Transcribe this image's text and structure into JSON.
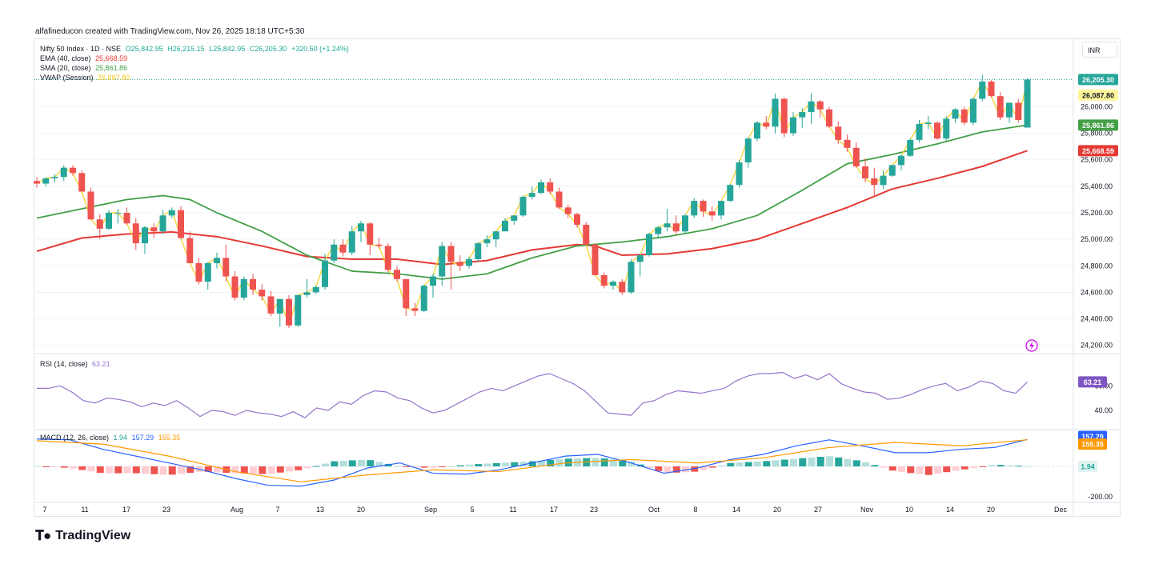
{
  "credit": "alfafineducon created with TradingView.com, Nov 26, 2025 18:18 UTC+5:30",
  "brand": "TradingView",
  "currency_button": "INR",
  "colors": {
    "up": "#26a69a",
    "down": "#ef5350",
    "ema": "#e53935",
    "sma": "#43a047",
    "vwap": "#f5d63a",
    "rsi": "#9575cd",
    "macd": "#2962ff",
    "signal": "#ff9800",
    "hist_up": "#26a69a",
    "hist_up_light": "#b2dfdb",
    "hist_down": "#ef5350",
    "hist_down_light": "#ffcdd2",
    "grid": "#f0f3fa",
    "text": "#131722"
  },
  "legend": {
    "main": {
      "name": "Nifty 50 Index · 1D · NSE",
      "o": "O25,842.95",
      "h": "H26,215.15",
      "l": "L25,842.95",
      "c": "C26,205.30",
      "chg": "+320.50 (+1.24%)"
    },
    "ema": {
      "name": "EMA (40, close)",
      "value": "25,668.59"
    },
    "sma": {
      "name": "SMA (20, close)",
      "value": "25,861.86"
    },
    "vwap": {
      "name": "VWAP (Session)",
      "value": "26,087.80"
    },
    "rsi": {
      "name": "RSI (14, close)",
      "value": "63.21"
    },
    "macd": {
      "name": "MACD (12, 26, close)",
      "hist": "1.94",
      "macd": "157.29",
      "signal": "155.35"
    }
  },
  "chart_data": [
    {
      "type": "candlestick",
      "title": "Nifty 50 Index · 1D · NSE",
      "x_tick_labels": [
        "7",
        "11",
        "17",
        "23",
        "Aug",
        "7",
        "13",
        "20",
        "Sep",
        "5",
        "11",
        "17",
        "23",
        "Oct",
        "8",
        "14",
        "20",
        "27",
        "Nov",
        "10",
        "14",
        "20",
        "Dec"
      ],
      "y_tick_labels": [
        "24,200.00",
        "24,400.00",
        "24,600.00",
        "24,800.00",
        "25,000.00",
        "25,200.00",
        "25,400.00",
        "25,600.00",
        "25,800.00",
        "26,000.00"
      ],
      "ylim": [
        24150,
        26250
      ],
      "price_labels": {
        "close": "26,205.30",
        "vwap": "26,087.80",
        "sma": "25,861.86",
        "ema": "25,668.59"
      },
      "candles": [
        [
          25440,
          25470,
          25390,
          25420
        ],
        [
          25420,
          25470,
          25400,
          25460
        ],
        [
          25460,
          25490,
          25430,
          25470
        ],
        [
          25470,
          25560,
          25440,
          25540
        ],
        [
          25540,
          25560,
          25480,
          25500
        ],
        [
          25500,
          25520,
          25360,
          25360
        ],
        [
          25360,
          25390,
          25150,
          25150
        ],
        [
          25150,
          25190,
          25000,
          25080
        ],
        [
          25080,
          25220,
          25070,
          25200
        ],
        [
          25200,
          25230,
          25120,
          25200
        ],
        [
          25200,
          25240,
          25110,
          25120
        ],
        [
          25120,
          25160,
          24920,
          24970
        ],
        [
          24970,
          25100,
          24890,
          25090
        ],
        [
          25090,
          25120,
          25010,
          25060
        ],
        [
          25060,
          25220,
          25040,
          25180
        ],
        [
          25180,
          25240,
          25160,
          25220
        ],
        [
          25220,
          25250,
          25000,
          25010
        ],
        [
          25010,
          25060,
          24820,
          24820
        ],
        [
          24820,
          24860,
          24660,
          24680
        ],
        [
          24680,
          24830,
          24620,
          24820
        ],
        [
          24820,
          24900,
          24780,
          24860
        ],
        [
          24860,
          24960,
          24680,
          24720
        ],
        [
          24720,
          24760,
          24540,
          24560
        ],
        [
          24560,
          24720,
          24540,
          24700
        ],
        [
          24700,
          24740,
          24580,
          24620
        ],
        [
          24620,
          24660,
          24540,
          24570
        ],
        [
          24570,
          24610,
          24420,
          24440
        ],
        [
          24440,
          24550,
          24340,
          24550
        ],
        [
          24550,
          24580,
          24330,
          24350
        ],
        [
          24350,
          24580,
          24340,
          24580
        ],
        [
          24580,
          24700,
          24560,
          24600
        ],
        [
          24600,
          24650,
          24590,
          24640
        ],
        [
          24640,
          24890,
          24620,
          24840
        ],
        [
          24840,
          25000,
          24820,
          24960
        ],
        [
          24960,
          25000,
          24870,
          24900
        ],
        [
          24900,
          25100,
          24880,
          25060
        ],
        [
          25060,
          25140,
          24980,
          25120
        ],
        [
          25120,
          25130,
          24880,
          24960
        ],
        [
          24960,
          25010,
          24930,
          24950
        ],
        [
          24950,
          24970,
          24750,
          24770
        ],
        [
          24770,
          24800,
          24680,
          24700
        ],
        [
          24700,
          24700,
          24420,
          24480
        ],
        [
          24480,
          24520,
          24420,
          24460
        ],
        [
          24460,
          24660,
          24450,
          24650
        ],
        [
          24650,
          24740,
          24560,
          24720
        ],
        [
          24720,
          24980,
          24650,
          24950
        ],
        [
          24950,
          24980,
          24620,
          24830
        ],
        [
          24830,
          24880,
          24760,
          24800
        ],
        [
          24800,
          24870,
          24780,
          24850
        ],
        [
          24850,
          24980,
          24830,
          24970
        ],
        [
          24970,
          25030,
          24940,
          25000
        ],
        [
          25000,
          25060,
          24940,
          25060
        ],
        [
          25060,
          25160,
          25060,
          25140
        ],
        [
          25140,
          25180,
          25110,
          25180
        ],
        [
          25180,
          25330,
          25170,
          25320
        ],
        [
          25320,
          25400,
          25300,
          25350
        ],
        [
          25350,
          25450,
          25340,
          25430
        ],
        [
          25430,
          25460,
          25340,
          25360
        ],
        [
          25360,
          25390,
          25230,
          25240
        ],
        [
          25240,
          25260,
          25160,
          25190
        ],
        [
          25190,
          25200,
          25090,
          25110
        ],
        [
          25110,
          25130,
          24950,
          24960
        ],
        [
          24960,
          24970,
          24730,
          24730
        ],
        [
          24730,
          24750,
          24630,
          24650
        ],
        [
          24650,
          24690,
          24620,
          24680
        ],
        [
          24680,
          24700,
          24580,
          24600
        ],
        [
          24600,
          24850,
          24590,
          24830
        ],
        [
          24830,
          24890,
          24720,
          24880
        ],
        [
          24880,
          25050,
          24870,
          25040
        ],
        [
          25040,
          25100,
          25010,
          25090
        ],
        [
          25090,
          25230,
          25060,
          25120
        ],
        [
          25120,
          25180,
          25040,
          25060
        ],
        [
          25060,
          25190,
          25040,
          25180
        ],
        [
          25180,
          25310,
          25160,
          25290
        ],
        [
          25290,
          25300,
          25170,
          25210
        ],
        [
          25210,
          25250,
          25140,
          25180
        ],
        [
          25180,
          25290,
          25150,
          25290
        ],
        [
          25290,
          25420,
          25280,
          25410
        ],
        [
          25410,
          25600,
          25390,
          25580
        ],
        [
          25580,
          25770,
          25540,
          25760
        ],
        [
          25760,
          25890,
          25740,
          25880
        ],
        [
          25880,
          25930,
          25830,
          25850
        ],
        [
          25850,
          26100,
          25800,
          26060
        ],
        [
          26060,
          26070,
          25770,
          25800
        ],
        [
          25800,
          25960,
          25780,
          25920
        ],
        [
          25920,
          25990,
          25840,
          25960
        ],
        [
          25960,
          26100,
          25870,
          26040
        ],
        [
          26040,
          26050,
          25920,
          25980
        ],
        [
          25980,
          26000,
          25840,
          25850
        ],
        [
          25850,
          25890,
          25720,
          25750
        ],
        [
          25750,
          25790,
          25660,
          25690
        ],
        [
          25690,
          25730,
          25540,
          25550
        ],
        [
          25550,
          25610,
          25430,
          25460
        ],
        [
          25460,
          25540,
          25320,
          25410
        ],
        [
          25410,
          25520,
          25380,
          25480
        ],
        [
          25480,
          25560,
          25470,
          25560
        ],
        [
          25560,
          25640,
          25520,
          25630
        ],
        [
          25630,
          25760,
          25620,
          25750
        ],
        [
          25750,
          25900,
          25730,
          25870
        ],
        [
          25870,
          25930,
          25830,
          25880
        ],
        [
          25880,
          25890,
          25750,
          25760
        ],
        [
          25760,
          25930,
          25740,
          25910
        ],
        [
          25910,
          25990,
          25880,
          25980
        ],
        [
          25980,
          26000,
          25860,
          25880
        ],
        [
          25880,
          26070,
          25860,
          26060
        ],
        [
          26060,
          26240,
          26040,
          26190
        ],
        [
          26190,
          26200,
          26070,
          26080
        ],
        [
          26080,
          26110,
          25900,
          25920
        ],
        [
          25920,
          26030,
          25880,
          26030
        ],
        [
          26030,
          26060,
          25880,
          25900
        ],
        [
          25842.95,
          26215.15,
          25842.95,
          26205.3
        ]
      ],
      "ema40": [
        [
          0,
          24910
        ],
        [
          5,
          25010
        ],
        [
          10,
          25040
        ],
        [
          15,
          25055
        ],
        [
          20,
          25020
        ],
        [
          25,
          24950
        ],
        [
          30,
          24870
        ],
        [
          35,
          24850
        ],
        [
          40,
          24850
        ],
        [
          45,
          24810
        ],
        [
          50,
          24840
        ],
        [
          55,
          24920
        ],
        [
          60,
          24960
        ],
        [
          62,
          24950
        ],
        [
          65,
          24880
        ],
        [
          70,
          24890
        ],
        [
          75,
          24930
        ],
        [
          80,
          25000
        ],
        [
          85,
          25120
        ],
        [
          90,
          25240
        ],
        [
          95,
          25380
        ],
        [
          100,
          25460
        ],
        [
          105,
          25550
        ],
        [
          110,
          25668.59
        ]
      ],
      "sma20": [
        [
          0,
          25160
        ],
        [
          5,
          25230
        ],
        [
          10,
          25300
        ],
        [
          14,
          25330
        ],
        [
          17,
          25300
        ],
        [
          20,
          25200
        ],
        [
          25,
          25060
        ],
        [
          30,
          24880
        ],
        [
          35,
          24760
        ],
        [
          40,
          24740
        ],
        [
          45,
          24700
        ],
        [
          50,
          24740
        ],
        [
          55,
          24860
        ],
        [
          60,
          24950
        ],
        [
          65,
          24980
        ],
        [
          70,
          25020
        ],
        [
          75,
          25080
        ],
        [
          80,
          25180
        ],
        [
          85,
          25370
        ],
        [
          90,
          25570
        ],
        [
          95,
          25640
        ],
        [
          100,
          25720
        ],
        [
          105,
          25810
        ],
        [
          110,
          25861.86
        ]
      ],
      "vwap_series": "follows close"
    },
    {
      "type": "line",
      "title": "RSI (14, close)",
      "y_tick_labels": [
        "40.00",
        "60.00"
      ],
      "ylim": [
        25,
        85
      ],
      "value_label": "63.21",
      "values": [
        58,
        58,
        60,
        55,
        48,
        46,
        50,
        49,
        47,
        43,
        46,
        44,
        48,
        42,
        35,
        40,
        39,
        36,
        40,
        38,
        37,
        35,
        39,
        34,
        42,
        40,
        47,
        45,
        52,
        56,
        55,
        50,
        48,
        42,
        38,
        40,
        45,
        50,
        55,
        58,
        56,
        60,
        64,
        68,
        70,
        66,
        62,
        56,
        47,
        38,
        37,
        36,
        46,
        48,
        53,
        56,
        55,
        54,
        56,
        58,
        64,
        68,
        70,
        70,
        71,
        66,
        69,
        65,
        70,
        62,
        58,
        55,
        54,
        49,
        50,
        53,
        57,
        60,
        62,
        56,
        59,
        64,
        62,
        56,
        54,
        63.21
      ]
    },
    {
      "type": "line",
      "title": "MACD (12, 26, close)",
      "y_tick_labels": [
        "-200.00"
      ],
      "ylim": [
        -210,
        210
      ],
      "value_labels": {
        "macd": "157.29",
        "signal": "155.35",
        "hist": "1.94"
      },
      "macd_values": [
        [
          0,
          160
        ],
        [
          5,
          155
        ],
        [
          10,
          100
        ],
        [
          15,
          60
        ],
        [
          20,
          20
        ],
        [
          25,
          -20
        ],
        [
          30,
          -70
        ],
        [
          35,
          -110
        ],
        [
          40,
          -115
        ],
        [
          45,
          -80
        ],
        [
          50,
          -10
        ],
        [
          55,
          20
        ],
        [
          60,
          -40
        ],
        [
          65,
          -45
        ],
        [
          70,
          -20
        ],
        [
          75,
          20
        ],
        [
          80,
          60
        ],
        [
          85,
          70
        ],
        [
          90,
          20
        ],
        [
          95,
          -40
        ],
        [
          100,
          -10
        ],
        [
          105,
          40
        ],
        [
          110,
          70
        ],
        [
          115,
          120
        ],
        [
          120,
          155
        ],
        [
          125,
          120
        ],
        [
          130,
          80
        ],
        [
          135,
          80
        ],
        [
          140,
          100
        ],
        [
          145,
          110
        ],
        [
          150,
          157.29
        ]
      ],
      "signal_values": [
        [
          0,
          150
        ],
        [
          10,
          130
        ],
        [
          20,
          60
        ],
        [
          30,
          -30
        ],
        [
          40,
          -90
        ],
        [
          50,
          -50
        ],
        [
          60,
          -20
        ],
        [
          70,
          -30
        ],
        [
          80,
          20
        ],
        [
          90,
          40
        ],
        [
          100,
          20
        ],
        [
          110,
          50
        ],
        [
          120,
          110
        ],
        [
          130,
          140
        ],
        [
          140,
          120
        ],
        [
          150,
          155.35
        ]
      ],
      "histogram": [
        [
          0,
          3
        ],
        [
          5,
          -10
        ],
        [
          10,
          -40
        ],
        [
          15,
          -40
        ],
        [
          20,
          -50
        ],
        [
          25,
          -30
        ],
        [
          30,
          -40
        ],
        [
          35,
          -45
        ],
        [
          40,
          -20
        ],
        [
          45,
          30
        ],
        [
          50,
          40
        ],
        [
          55,
          0
        ],
        [
          60,
          -10
        ],
        [
          65,
          10
        ],
        [
          70,
          20
        ],
        [
          75,
          30
        ],
        [
          80,
          45
        ],
        [
          85,
          50
        ],
        [
          90,
          30
        ],
        [
          95,
          -40
        ],
        [
          100,
          -30
        ],
        [
          105,
          20
        ],
        [
          110,
          30
        ],
        [
          115,
          45
        ],
        [
          120,
          60
        ],
        [
          125,
          30
        ],
        [
          130,
          -30
        ],
        [
          135,
          -50
        ],
        [
          140,
          -20
        ],
        [
          145,
          10
        ],
        [
          150,
          1.94
        ]
      ]
    }
  ]
}
